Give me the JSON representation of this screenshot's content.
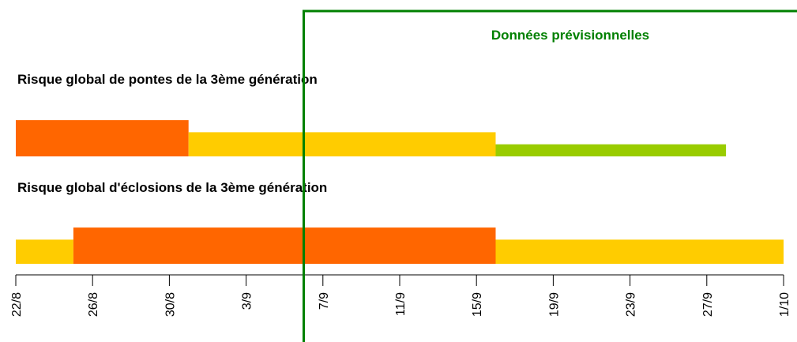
{
  "chart_data": {
    "type": "timeline",
    "annotation": "Données prévisionnelles",
    "forecast_start": 249,
    "forecast_color": "#008000",
    "xlim": [
      234,
      274
    ],
    "xticks": [
      {
        "value": 234,
        "label": "22/8"
      },
      {
        "value": 238,
        "label": "26/8"
      },
      {
        "value": 242,
        "label": "30/8"
      },
      {
        "value": 246,
        "label": "3/9"
      },
      {
        "value": 250,
        "label": "7/9"
      },
      {
        "value": 254,
        "label": "11/9"
      },
      {
        "value": 258,
        "label": "15/9"
      },
      {
        "value": 262,
        "label": "19/9"
      },
      {
        "value": 266,
        "label": "23/9"
      },
      {
        "value": 270,
        "label": "27/9"
      },
      {
        "value": 274,
        "label": "1/10"
      }
    ],
    "series": [
      {
        "name": "Risque global de pontes de la 3ème génération",
        "segments": [
          {
            "start": 234,
            "end": 243,
            "level": 3,
            "color": "#ff6600"
          },
          {
            "start": 243,
            "end": 259,
            "level": 2,
            "color": "#ffcc00"
          },
          {
            "start": 259,
            "end": 271,
            "level": 1,
            "color": "#99cc00"
          }
        ]
      },
      {
        "name": "Risque global d'éclosions de la 3ème génération",
        "segments": [
          {
            "start": 234,
            "end": 237,
            "level": 2,
            "color": "#ffcc00"
          },
          {
            "start": 237,
            "end": 259,
            "level": 3,
            "color": "#ff6600"
          },
          {
            "start": 259,
            "end": 274,
            "level": 2,
            "color": "#ffcc00"
          }
        ]
      }
    ]
  }
}
